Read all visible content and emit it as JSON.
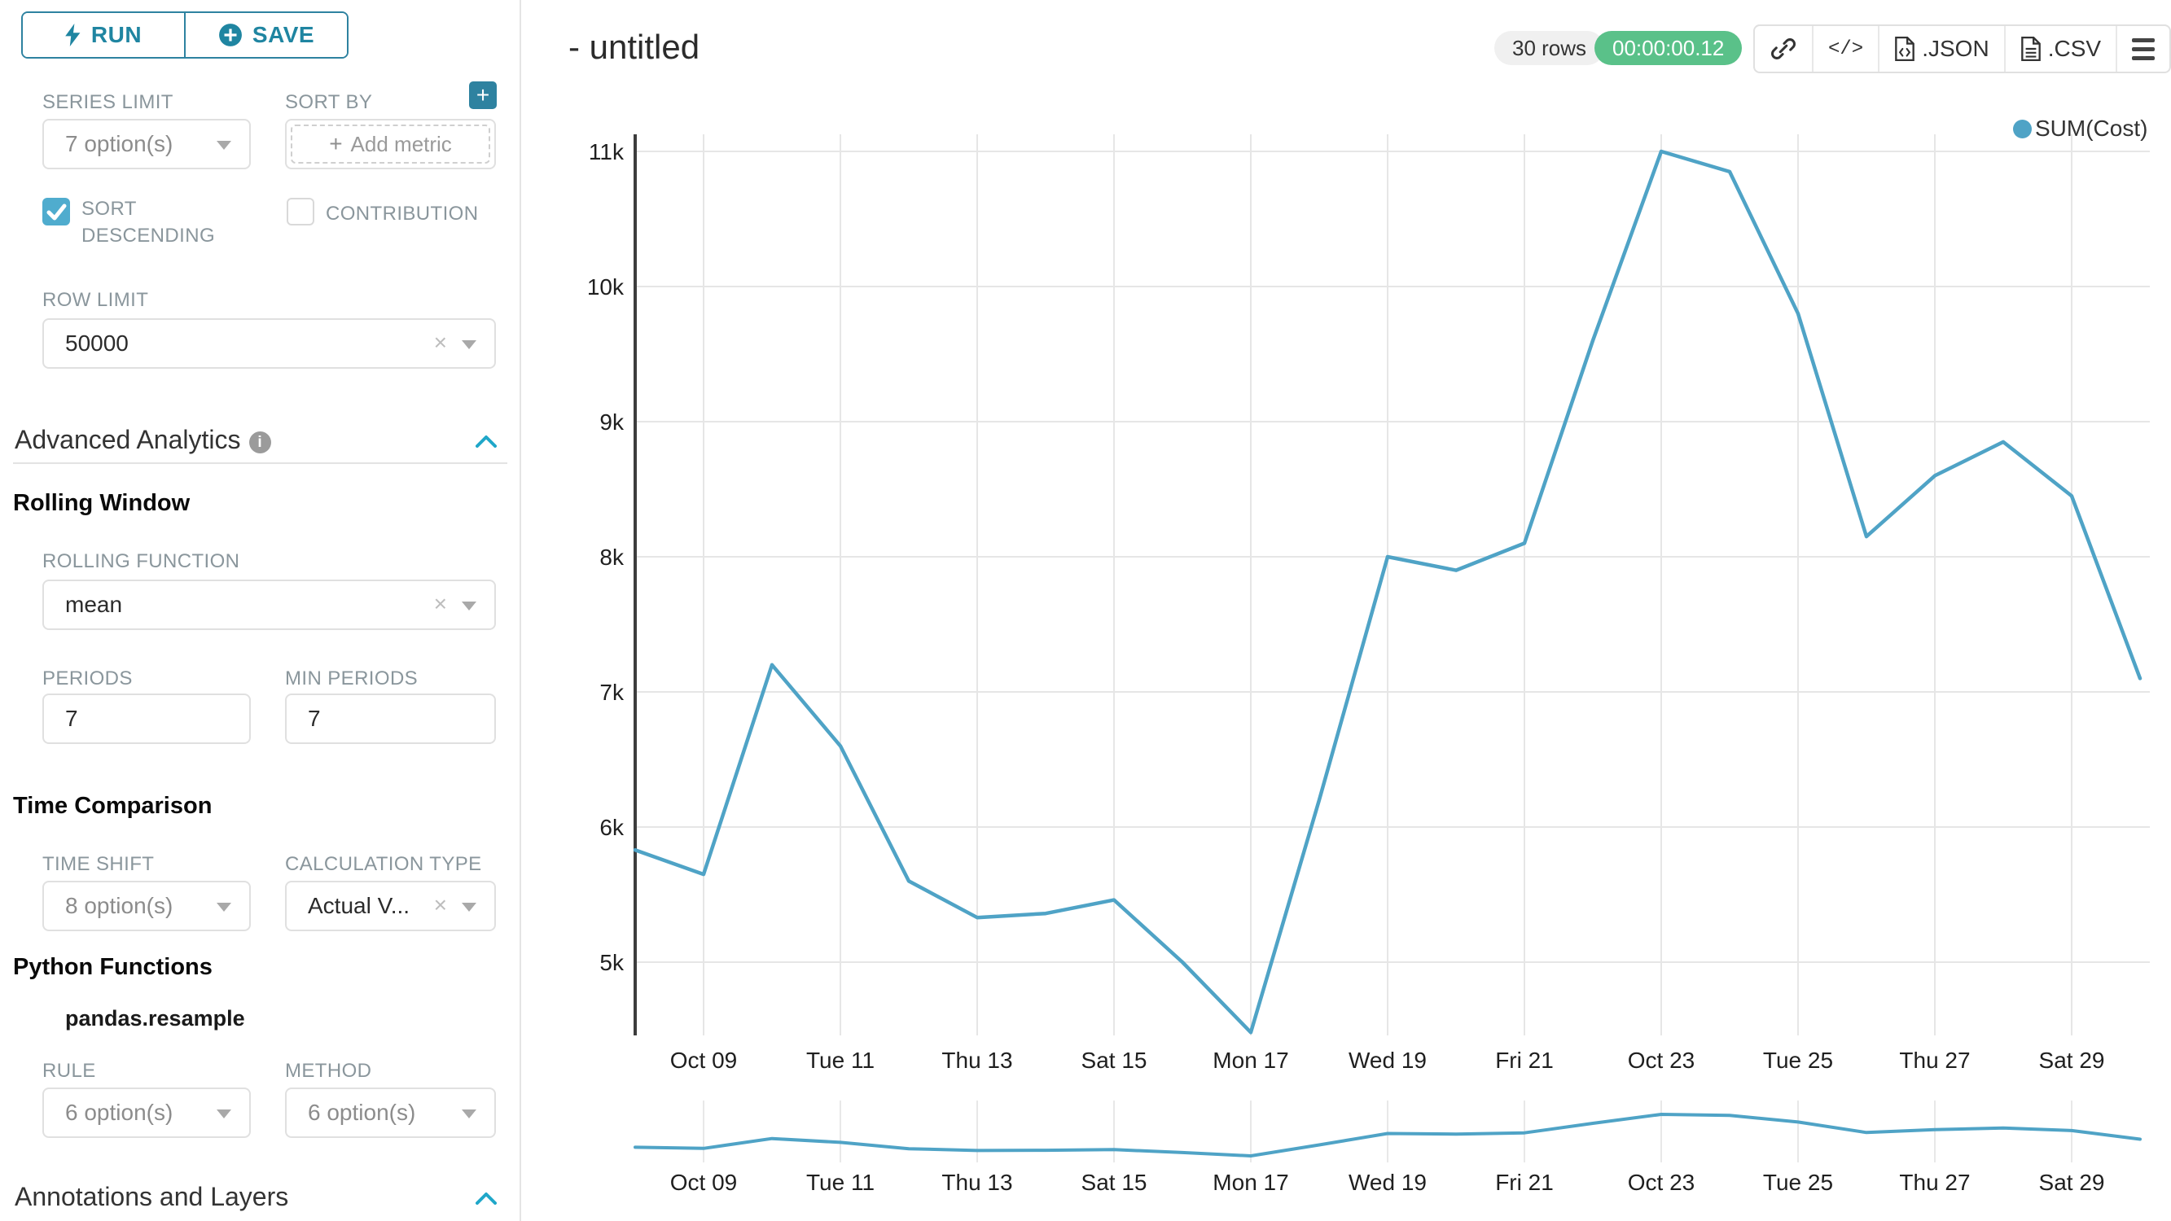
{
  "sidebar": {
    "run_label": "RUN",
    "save_label": "SAVE",
    "series_limit": {
      "label": "SERIES LIMIT",
      "value": "7 option(s)"
    },
    "sort_by": {
      "label": "SORT BY",
      "placeholder": "Add metric",
      "plus": "+"
    },
    "sort_descending_label": "SORT DESCENDING",
    "contribution_label": "CONTRIBUTION",
    "row_limit": {
      "label": "ROW LIMIT",
      "value": "50000"
    },
    "advanced_analytics_title": "Advanced Analytics",
    "rolling_window": {
      "title": "Rolling Window",
      "rolling_function": {
        "label": "ROLLING FUNCTION",
        "value": "mean"
      },
      "periods": {
        "label": "PERIODS",
        "value": "7"
      },
      "min_periods": {
        "label": "MIN PERIODS",
        "value": "7"
      }
    },
    "time_comparison": {
      "title": "Time Comparison",
      "time_shift": {
        "label": "TIME SHIFT",
        "value": "8 option(s)"
      },
      "calculation_type": {
        "label": "CALCULATION TYPE",
        "value": "Actual V..."
      }
    },
    "python_functions": {
      "title": "Python Functions",
      "subtitle": "pandas.resample",
      "rule": {
        "label": "RULE",
        "value": "6 option(s)"
      },
      "method": {
        "label": "METHOD",
        "value": "6 option(s)"
      }
    },
    "annotations_title": "Annotations and Layers"
  },
  "header": {
    "title": "- untitled",
    "rows_badge": "30 rows",
    "timer_badge": "00:00:00.12",
    "code_label": "</>",
    "json_label": ".JSON",
    "csv_label": ".CSV"
  },
  "colors": {
    "accent_teal": "#2E82A0",
    "checkbox_blue": "#4FACCE",
    "line_blue": "#4FA3C6",
    "success_green": "#5AC189",
    "collapse_chevron": "#20A7C9"
  },
  "chart_data": {
    "type": "line",
    "title": "- untitled",
    "xlabel": "",
    "ylabel": "",
    "grid": true,
    "legend_position": "top-right",
    "ylim": [
      4400,
      11100
    ],
    "y_ticks": [
      5000,
      6000,
      7000,
      8000,
      9000,
      10000,
      11000
    ],
    "y_tick_labels": [
      "5k",
      "6k",
      "7k",
      "8k",
      "9k",
      "10k",
      "11k"
    ],
    "x_tick_labels": [
      "Oct 09",
      "Tue 11",
      "Thu 13",
      "Sat 15",
      "Mon 17",
      "Wed 19",
      "Fri 21",
      "Oct 23",
      "Tue 25",
      "Thu 27",
      "Sat 29"
    ],
    "mini_x_tick_labels": [
      "Oct 09",
      "Tue 11",
      "Thu 13",
      "Sat 15",
      "Mon 17",
      "Wed 19",
      "Fri 21",
      "Oct 23",
      "Tue 25",
      "Thu 27",
      "Sat 29"
    ],
    "series": [
      {
        "name": "SUM(Cost)",
        "color": "#4FA3C6",
        "x": [
          "Oct 08",
          "Oct 09",
          "Oct 10",
          "Oct 11",
          "Oct 12",
          "Oct 13",
          "Oct 14",
          "Oct 15",
          "Oct 16",
          "Oct 17",
          "Oct 18",
          "Oct 19",
          "Oct 20",
          "Oct 21",
          "Oct 22",
          "Oct 23",
          "Oct 24",
          "Oct 25",
          "Oct 26",
          "Oct 27",
          "Oct 28",
          "Oct 29",
          "Oct 30"
        ],
        "values": [
          5830,
          5650,
          7200,
          6600,
          5600,
          5330,
          5360,
          5460,
          5000,
          4480,
          6200,
          8000,
          7900,
          8100,
          9600,
          11000,
          10850,
          9800,
          8150,
          8600,
          8850,
          8450,
          7100
        ]
      }
    ]
  }
}
